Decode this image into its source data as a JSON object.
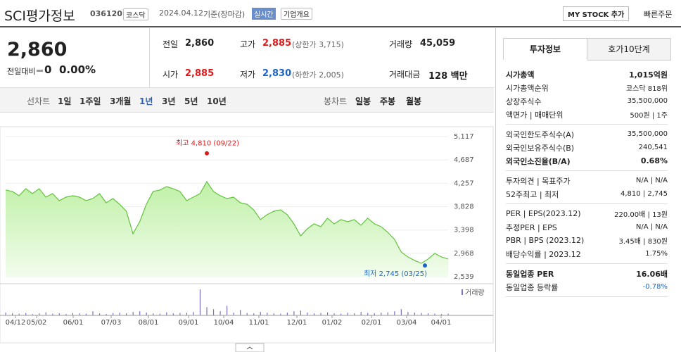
{
  "header": {
    "name": "SCI평가정보",
    "code": "036120",
    "market": "코스닥",
    "date": "2024.04.12",
    "basis": "기준(장마감)",
    "badge": "실시간",
    "overview": "기업개요",
    "mystock": "MY STOCK 추가",
    "order": "빠른주문"
  },
  "quote": {
    "price": "2,860",
    "change_label": "전일대비",
    "change": "0",
    "pct": "0.00%"
  },
  "stats": [
    {
      "label": "전일",
      "value": "2,860"
    },
    {
      "label": "고가",
      "value": "2,885",
      "color": "#e0191b",
      "extra": "(상한가 3,715)"
    },
    {
      "label": "거래량",
      "value": "45,059"
    },
    {
      "label": "시가",
      "value": "2,885",
      "color": "#e0191b"
    },
    {
      "label": "저가",
      "value": "2,830",
      "color": "#1a64c8",
      "extra": "(하한가 2,005)"
    },
    {
      "label": "거래대금",
      "value": "128 백만"
    }
  ],
  "chart_tabs": {
    "line_label": "선차트",
    "line": [
      "1일",
      "1주일",
      "3개월",
      "1년",
      "3년",
      "5년",
      "10년"
    ],
    "candle_label": "봉차트",
    "candle": [
      "일봉",
      "주봉",
      "월봉"
    ]
  },
  "chart_data": {
    "type": "line",
    "color": "#62c23c",
    "ylim": [
      2539,
      5117
    ],
    "yticks": [
      {
        "value": 5117,
        "label": "5,117"
      },
      {
        "value": 4687,
        "label": "4,687"
      },
      {
        "value": 4257,
        "label": "4,257"
      },
      {
        "value": 3828,
        "label": "3,828"
      },
      {
        "value": 3398,
        "label": "3,398"
      },
      {
        "value": 2968,
        "label": "2,968"
      },
      {
        "value": 2539,
        "label": "2,539"
      }
    ],
    "xticks": [
      "04/12",
      "05/02",
      "06/01",
      "07/03",
      "08/01",
      "09/01",
      "10/04",
      "11/01",
      "12/01",
      "01/02",
      "02/01",
      "03/04",
      "04/01"
    ],
    "series": [
      {
        "name": "종가",
        "values": [
          4133,
          4107,
          4029,
          4158,
          4068,
          4158,
          4003,
          4068,
          3938,
          4003,
          4029,
          4003,
          3938,
          3977,
          4068,
          3899,
          3977,
          3873,
          3744,
          3329,
          3550,
          3873,
          4107,
          4133,
          4197,
          4158,
          4107,
          3938,
          4003,
          4068,
          4288,
          4107,
          4029,
          3977,
          4003,
          3899,
          3873,
          3770,
          3589,
          3680,
          3744,
          3770,
          3680,
          3511,
          3291,
          3420,
          3511,
          3459,
          3615,
          3511,
          3589,
          3550,
          3589,
          3485,
          3615,
          3511,
          3459,
          3355,
          3226,
          2993,
          2902,
          2838,
          2785,
          2863,
          2967,
          2902,
          2863
        ]
      },
      {
        "name": "거래량",
        "color": "#7b6fc0",
        "values": [
          40,
          30,
          25,
          35,
          20,
          30,
          45,
          25,
          30,
          20,
          35,
          30,
          25,
          60,
          30,
          20,
          35,
          40,
          30,
          50,
          60,
          40,
          30,
          25,
          45,
          30,
          35,
          40,
          50,
          380,
          120,
          90,
          60,
          140,
          40,
          80,
          35,
          30,
          50,
          40,
          30,
          25,
          40,
          60,
          70,
          40,
          30,
          35,
          45,
          30,
          25,
          40,
          30,
          50,
          35,
          30,
          40,
          45,
          60,
          90,
          50,
          40,
          35,
          30,
          25,
          20,
          25
        ]
      }
    ],
    "annotations": [
      {
        "text": "최고 4,810 (09/22)",
        "value": 4810
      },
      {
        "text": "최저 2,745 (03/25)",
        "value": 2745
      }
    ]
  },
  "info_panel": {
    "tabs": [
      "투자정보",
      "호가10단계"
    ],
    "groups": [
      [
        [
          "시가총액",
          "1,015억원"
        ],
        [
          "시가총액순위",
          "코스닥 818위"
        ],
        [
          "상장주식수",
          "35,500,000"
        ],
        [
          "액면가 | 매매단위",
          "500원 | 1주"
        ]
      ],
      [
        [
          "외국인한도주식수(A)",
          "35,500,000"
        ],
        [
          "외국인보유주식수(B)",
          "240,541"
        ],
        [
          "외국인소진율(B/A)",
          "0.68%"
        ]
      ],
      [
        [
          "투자의견 | 목표주가",
          "N/A | N/A"
        ],
        [
          "52주최고 | 최저",
          "4,810 | 2,745"
        ]
      ],
      [
        [
          "PER | EPS(2023.12)",
          "220.00배 | 13원"
        ],
        [
          "추정PER | EPS",
          "N/A | N/A"
        ],
        [
          "PBR | BPS (2023.12)",
          "3.45배 | 830원"
        ],
        [
          "배당수익률 | 2023.12",
          "1.75%"
        ]
      ],
      [
        [
          "동일업종 PER",
          "16.06배"
        ],
        [
          "동일업종 등락률",
          "-0.78%"
        ]
      ]
    ]
  }
}
